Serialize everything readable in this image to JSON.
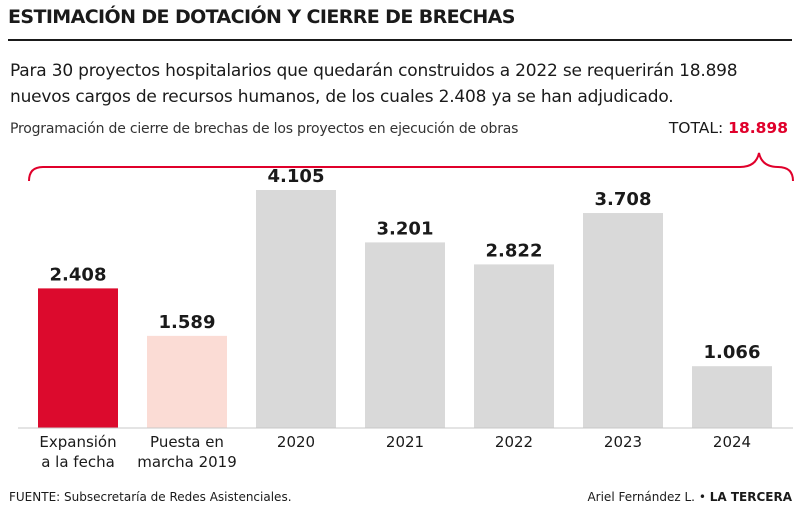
{
  "header": {
    "title": "ESTIMACIÓN DE DOTACIÓN Y CIERRE DE BRECHAS",
    "lead_line1": "Para 30 proyectos hospitalarios que quedarán construidos a 2022 se requerirán 18.898",
    "lead_line2": "nuevos cargos de recursos humanos, de los cuales 2.408 ya se han adjudicado.",
    "subtitle": "Programación de cierre de brechas de los proyectos en ejecución de obras",
    "total_label": "TOTAL:",
    "total_value": "18.898"
  },
  "chart_data": {
    "type": "bar",
    "categories": [
      [
        "Expansión",
        "a la fecha"
      ],
      [
        "Puesta en",
        "marcha 2019"
      ],
      [
        "2020"
      ],
      [
        "2021"
      ],
      [
        "2022"
      ],
      [
        "2023"
      ],
      [
        "2024"
      ]
    ],
    "values": [
      2408,
      1589,
      4105,
      3201,
      2822,
      3708,
      1066
    ],
    "value_labels": [
      "2.408",
      "1.589",
      "4.105",
      "3.201",
      "2.822",
      "3.708",
      "1.066"
    ],
    "colors": [
      "#dc0a2d",
      "#fbdcd5",
      "#d9d9d9",
      "#d9d9d9",
      "#d9d9d9",
      "#d9d9d9",
      "#d9d9d9"
    ],
    "accent_color": "#e0002b",
    "ylim": [
      0,
      4105
    ],
    "grid": false
  },
  "footer": {
    "source": "FUENTE: Subsecretaría de Redes Asistenciales.",
    "author": "Ariel Fernández L.",
    "separator": "•",
    "brand": "LA TERCERA"
  }
}
